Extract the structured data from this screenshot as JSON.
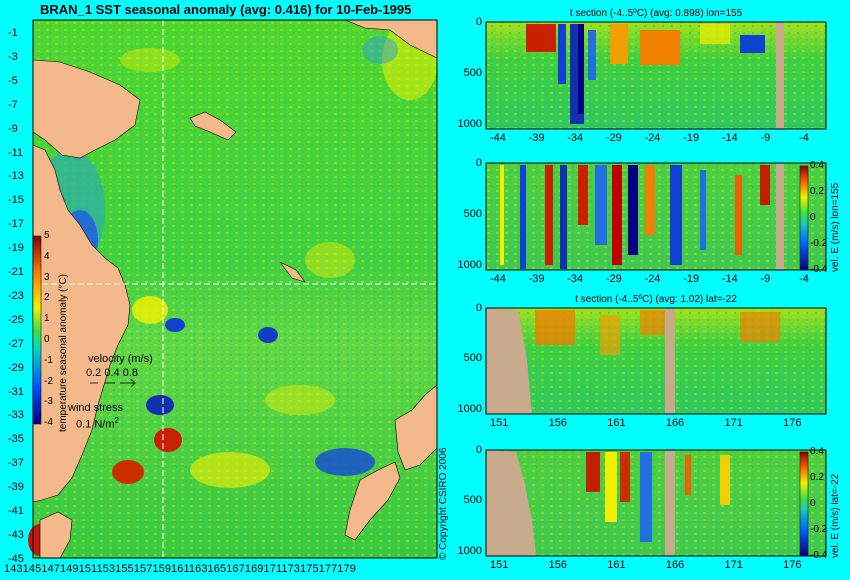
{
  "main_title": "BRAN_1 SST seasonal anomaly (avg: 0.416) for 10-Feb-1995",
  "copyright": "© Copyright CSIRO 2006",
  "colors": {
    "background": "#00ffff",
    "land": "#f4b98a",
    "section_land": "#c8aa8c"
  },
  "map": {
    "lat_ticks": [
      "-1",
      "-3",
      "-5",
      "-7",
      "-9",
      "-11",
      "-13",
      "-15",
      "-17",
      "-19",
      "-21",
      "-23",
      "-25",
      "-27",
      "-29",
      "-31",
      "-33",
      "-35",
      "-37",
      "-39",
      "-41",
      "-43",
      "-45"
    ],
    "lon_ticks_text": "143145147149151153155157159161163165167169171173175177179",
    "colorbar_ticks": [
      "5",
      "4",
      "3",
      "2",
      "1",
      "0",
      "-1",
      "-2",
      "-3",
      "-4"
    ],
    "colorbar_label": "temperature seasonal anomaly (°C)",
    "velocity_label": "velocity (m/s)",
    "velocity_scale": "0.2 0.4 0.8",
    "wind_label": "wind stress",
    "wind_scale": "0.1 N/m",
    "wind_exp": "2"
  },
  "panels": [
    {
      "title": "t section (-4..5ºC) (avg: 0.898) lon=155",
      "x_ticks": [
        "-44",
        "-39",
        "-34",
        "-29",
        "-24",
        "-19",
        "-14",
        "-9",
        "-4"
      ],
      "y_ticks": [
        "0",
        "500",
        "1000"
      ]
    },
    {
      "title": "",
      "x_ticks": [
        "-44",
        "-39",
        "-34",
        "-29",
        "-24",
        "-19",
        "-14",
        "-9",
        "-4"
      ],
      "y_ticks": [
        "0",
        "500",
        "1000"
      ],
      "cbar_label": "vel. E (m/s) lon=155",
      "cbar_ticks": [
        "0.4",
        "0.2",
        "0",
        "-0.2",
        "-0.4"
      ]
    },
    {
      "title": "t section (-4..5ºC) (avg: 1.02) lat=-22",
      "x_ticks": [
        "151",
        "156",
        "161",
        "166",
        "171",
        "176"
      ],
      "y_ticks": [
        "0",
        "500",
        "1000"
      ]
    },
    {
      "title": "",
      "x_ticks": [
        "151",
        "156",
        "161",
        "166",
        "171",
        "176"
      ],
      "y_ticks": [
        "0",
        "500",
        "1000"
      ],
      "cbar_label": "vel. E (m/s) lat=-22",
      "cbar_ticks": [
        "0.4",
        "0.2",
        "0",
        "-0.2",
        "-0.4"
      ]
    }
  ],
  "chart_data": [
    {
      "type": "heatmap",
      "title": "BRAN_1 SST seasonal anomaly (avg: 0.416) for 10-Feb-1995",
      "xlabel": "",
      "ylabel": "",
      "xlim": [
        143,
        179
      ],
      "ylim": [
        -45,
        -1
      ],
      "colorbar_range": [
        -4,
        5
      ],
      "colorbar_label": "temperature seasonal anomaly (°C)",
      "average": 0.416
    },
    {
      "type": "heatmap",
      "title": "t section (-4..5ºC) (avg: 0.898) lon=155",
      "xlim": [
        -44,
        -1
      ],
      "ylim": [
        1000,
        0
      ],
      "average": 0.898
    },
    {
      "type": "heatmap",
      "title": "",
      "xlim": [
        -44,
        -1
      ],
      "ylim": [
        1000,
        0
      ],
      "colorbar_range": [
        -0.4,
        0.4
      ],
      "colorbar_label": "vel. E (m/s) lon=155"
    },
    {
      "type": "heatmap",
      "title": "t section (-4..5ºC) (avg: 1.02) lat=-22",
      "xlim": [
        151,
        179
      ],
      "ylim": [
        1000,
        0
      ],
      "average": 1.02
    },
    {
      "type": "heatmap",
      "title": "",
      "xlim": [
        151,
        179
      ],
      "ylim": [
        1000,
        0
      ],
      "colorbar_range": [
        -0.4,
        0.4
      ],
      "colorbar_label": "vel. E (m/s) lat=-22"
    }
  ]
}
